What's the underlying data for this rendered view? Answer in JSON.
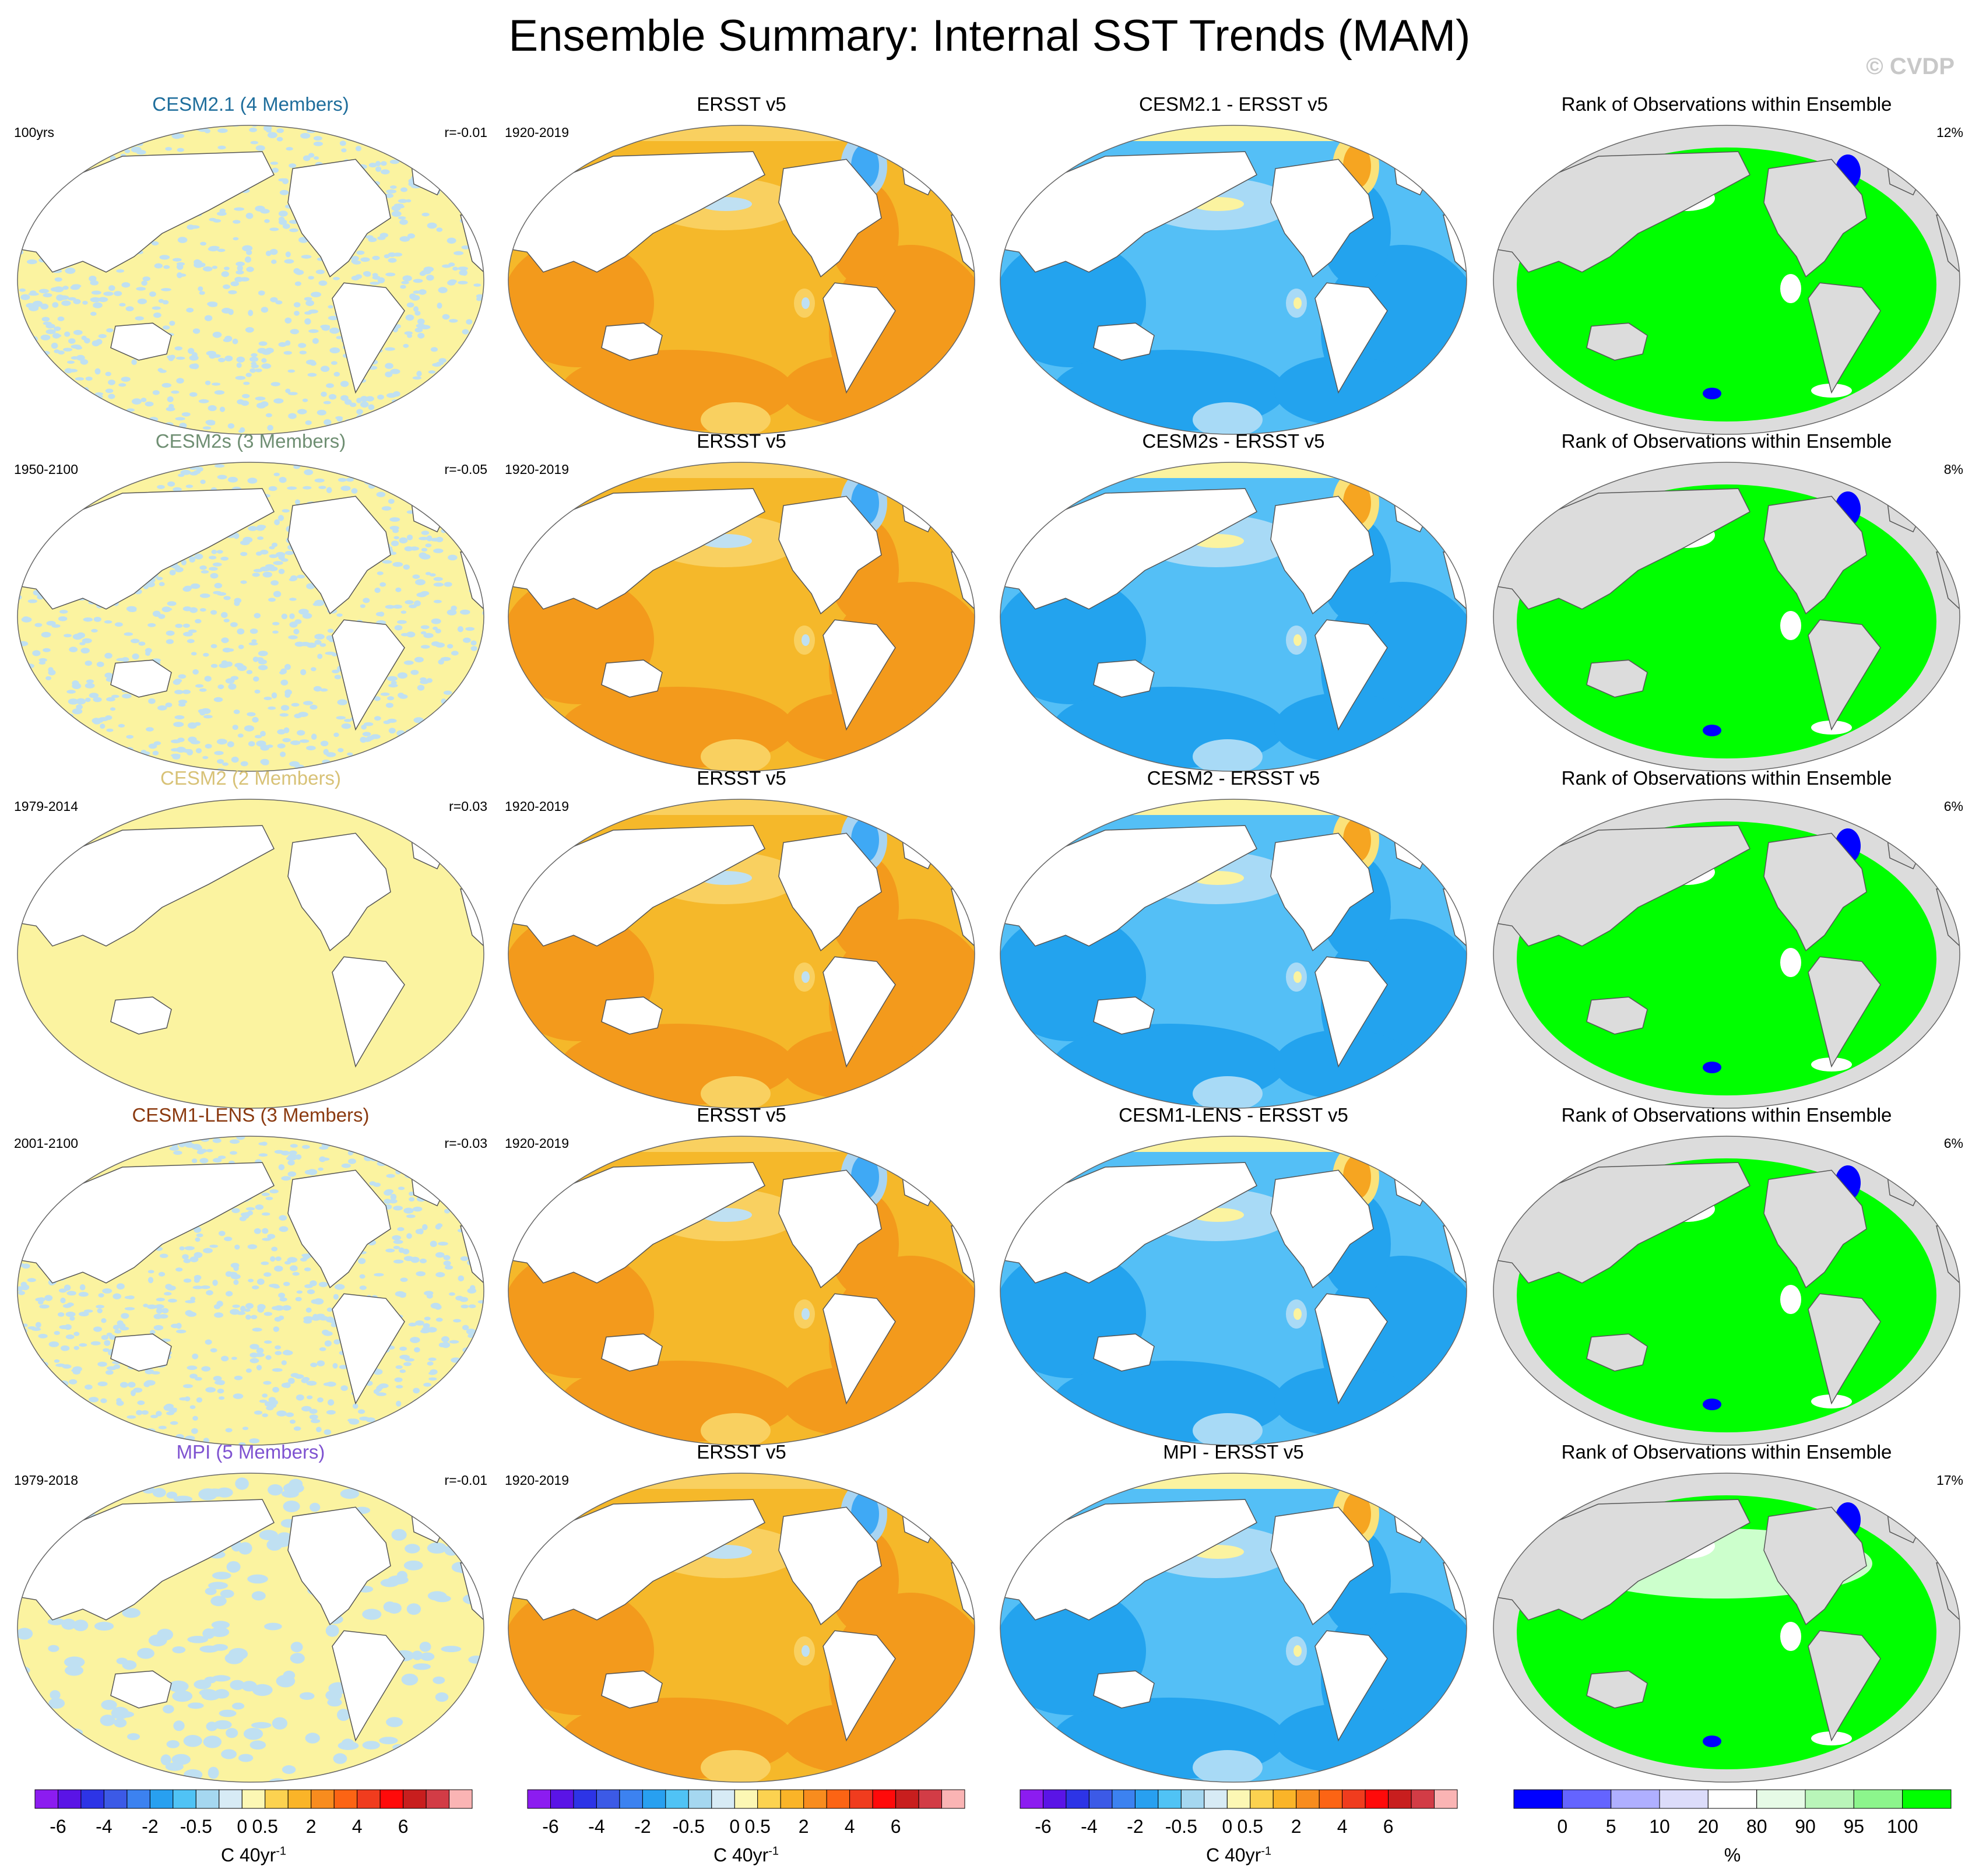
{
  "header": {
    "title": "Ensemble Summary: Internal SST Trends (MAM)",
    "copyright": "© CVDP"
  },
  "rows": [
    {
      "model_title": "CESM2.1 (4 Members)",
      "model_color": "#1f6e9c",
      "model_left": "100yrs",
      "model_right": "r=-0.01",
      "obs_title": "ERSST v5",
      "obs_left": "1920-2019",
      "diff_title": "CESM2.1 - ERSST v5",
      "rank_title": "Rank of Observations within Ensemble",
      "rank_right": "12%",
      "model_fill": "noise"
    },
    {
      "model_title": "CESM2s (3 Members)",
      "model_color": "#6f8f73",
      "model_left": "1950-2100",
      "model_right": "r=-0.05",
      "obs_title": "ERSST v5",
      "obs_left": "1920-2019",
      "diff_title": "CESM2s - ERSST v5",
      "rank_title": "Rank of Observations within Ensemble",
      "rank_right": "8%",
      "model_fill": "noise"
    },
    {
      "model_title": "CESM2 (2 Members)",
      "model_color": "#d8c277",
      "model_left": "1979-2014",
      "model_right": "r=0.03",
      "obs_title": "ERSST v5",
      "obs_left": "1920-2019",
      "diff_title": "CESM2 - ERSST v5",
      "rank_title": "Rank of Observations within Ensemble",
      "rank_right": "6%",
      "model_fill": "flat"
    },
    {
      "model_title": "CESM1-LENS (3 Members)",
      "model_color": "#8b3a10",
      "model_left": "2001-2100",
      "model_right": "r=-0.03",
      "obs_title": "ERSST v5",
      "obs_left": "1920-2019",
      "diff_title": "CESM1-LENS - ERSST v5",
      "rank_title": "Rank of Observations within Ensemble",
      "rank_right": "6%",
      "model_fill": "noise"
    },
    {
      "model_title": "MPI (5 Members)",
      "model_color": "#7f53d1",
      "model_left": "1979-2018",
      "model_right": "r=-0.01",
      "obs_title": "ERSST v5",
      "obs_left": "1920-2019",
      "diff_title": "MPI - ERSST v5",
      "rank_title": "Rank of Observations within Ensemble",
      "rank_right": "17%",
      "model_fill": "noise"
    }
  ],
  "colors": {
    "land": "#ffffff",
    "rank_land": "#dcdcdc",
    "model_yellow": "#fbf3a0",
    "model_blue": "#bfe0f2",
    "obs_base": "#f5b82a",
    "obs_dark": "#f39a1c",
    "obs_light": "#f9d060",
    "obs_blue": "#3fa9f5",
    "diff_base": "#54bff6",
    "diff_dark": "#23a3ee",
    "diff_pale": "#a8daf6",
    "diff_orange": "#f6a521",
    "rank_green": "#00ff00",
    "rank_blue": "#0000ff"
  },
  "chart_data": [
    {
      "type": "heatmap",
      "name": "sst-trend-colorbar",
      "units_prefix": "C 40yr",
      "units_superscript": "-1",
      "colors": [
        "#8c1cf0",
        "#5a14e6",
        "#2d34e6",
        "#3c5ae6",
        "#3c82f0",
        "#28a0f0",
        "#50c3f5",
        "#a5d7f0",
        "#d7ebf5",
        "#fcf7b4",
        "#fcd250",
        "#fab428",
        "#f88c1e",
        "#fc6414",
        "#f03c1e",
        "#ff0a0a",
        "#c81e1e",
        "#d23c46",
        "#fab4b4"
      ],
      "tick_labels": [
        "-6",
        "-4",
        "-2",
        "-0.5",
        "0",
        "0.5",
        "2",
        "4",
        "6"
      ]
    },
    {
      "type": "heatmap",
      "name": "rank-colorbar",
      "units": "%",
      "colors": [
        "#0000ff",
        "#6464ff",
        "#afafff",
        "#dcdcfa",
        "#ffffff",
        "#e6fae6",
        "#b9f5b9",
        "#8cf58c",
        "#00ff00"
      ],
      "tick_labels": [
        "0",
        "5",
        "10",
        "20",
        "80",
        "90",
        "95",
        "100"
      ]
    }
  ]
}
